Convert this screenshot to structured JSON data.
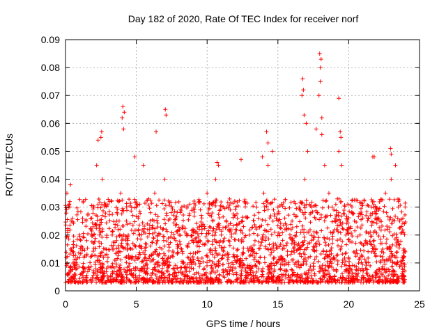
{
  "chart_data": {
    "type": "scatter",
    "title": "Day 182 of 2020, Rate Of TEC Index for receiver norf",
    "xlabel": "GPS time / hours",
    "ylabel": "ROTI / TECUs",
    "xlim": [
      0,
      25
    ],
    "ylim": [
      0,
      0.09
    ],
    "xticks": [
      0,
      5,
      10,
      15,
      20,
      25
    ],
    "xtick_labels": [
      "0",
      "5",
      "10",
      "15",
      "20",
      "25"
    ],
    "yticks": [
      0,
      0.01,
      0.02,
      0.03,
      0.04,
      0.05,
      0.06,
      0.07,
      0.08,
      0.09
    ],
    "ytick_labels": [
      "0",
      "0.01",
      "0.02",
      "0.03",
      "0.04",
      "0.05",
      "0.06",
      "0.07",
      "0.08",
      "0.09"
    ],
    "grid": true,
    "marker": "+",
    "color": "#ff0000",
    "series": [
      {
        "name": "ROTI",
        "note": "dense band mostly between 0.005 and 0.03 over 0-24 h; representative points including visible peaks",
        "x": [
          0.05,
          0.1,
          0.2,
          0.3,
          0.4,
          0.5,
          0.6,
          0.8,
          1.0,
          1.2,
          1.5,
          1.8,
          2.0,
          2.2,
          2.4,
          2.5,
          2.6,
          2.8,
          3.0,
          3.3,
          3.6,
          3.9,
          4.0,
          4.1,
          4.3,
          4.6,
          4.9,
          5.0,
          5.2,
          5.5,
          5.8,
          6.0,
          6.3,
          6.5,
          6.8,
          7.0,
          7.1,
          7.4,
          7.8,
          8.2,
          8.6,
          9.0,
          9.5,
          10.0,
          10.4,
          10.6,
          11.0,
          11.5,
          12.0,
          12.5,
          13.0,
          13.5,
          14.0,
          14.3,
          14.6,
          15.0,
          15.5,
          16.0,
          16.5,
          16.9,
          17.0,
          17.1,
          17.4,
          17.8,
          18.0,
          18.1,
          18.3,
          18.6,
          19.0,
          19.3,
          19.5,
          19.8,
          20.0,
          20.4,
          20.8,
          21.2,
          21.6,
          21.8,
          22.2,
          22.6,
          23.0,
          23.3,
          23.6,
          23.9,
          0.3,
          0.35,
          2.3,
          2.55,
          4.05,
          4.15,
          6.4,
          7.05,
          7.1,
          10.7,
          10.8,
          12.4,
          13.9,
          14.2,
          14.3,
          16.7,
          16.75,
          16.8,
          16.85,
          17.7,
          17.9,
          17.95,
          18.0,
          18.05,
          18.1,
          19.3,
          19.4,
          19.45,
          21.7,
          22.95,
          23.0
        ],
        "y": [
          0.012,
          0.035,
          0.03,
          0.032,
          0.025,
          0.014,
          0.01,
          0.008,
          0.012,
          0.015,
          0.018,
          0.022,
          0.03,
          0.045,
          0.02,
          0.055,
          0.04,
          0.015,
          0.012,
          0.02,
          0.018,
          0.035,
          0.062,
          0.058,
          0.025,
          0.015,
          0.048,
          0.03,
          0.02,
          0.045,
          0.022,
          0.028,
          0.035,
          0.018,
          0.015,
          0.04,
          0.022,
          0.012,
          0.018,
          0.015,
          0.02,
          0.022,
          0.018,
          0.035,
          0.025,
          0.04,
          0.02,
          0.018,
          0.022,
          0.025,
          0.02,
          0.03,
          0.035,
          0.045,
          0.05,
          0.03,
          0.022,
          0.025,
          0.03,
          0.04,
          0.06,
          0.05,
          0.03,
          0.028,
          0.08,
          0.062,
          0.045,
          0.035,
          0.025,
          0.05,
          0.045,
          0.02,
          0.012,
          0.025,
          0.02,
          0.018,
          0.03,
          0.048,
          0.025,
          0.035,
          0.04,
          0.045,
          0.025,
          0.015,
          0.03,
          0.038,
          0.054,
          0.057,
          0.066,
          0.064,
          0.057,
          0.065,
          0.063,
          0.046,
          0.045,
          0.047,
          0.048,
          0.057,
          0.053,
          0.07,
          0.076,
          0.072,
          0.063,
          0.058,
          0.07,
          0.085,
          0.075,
          0.083,
          0.056,
          0.069,
          0.057,
          0.055,
          0.048,
          0.051,
          0.049
        ]
      }
    ]
  }
}
